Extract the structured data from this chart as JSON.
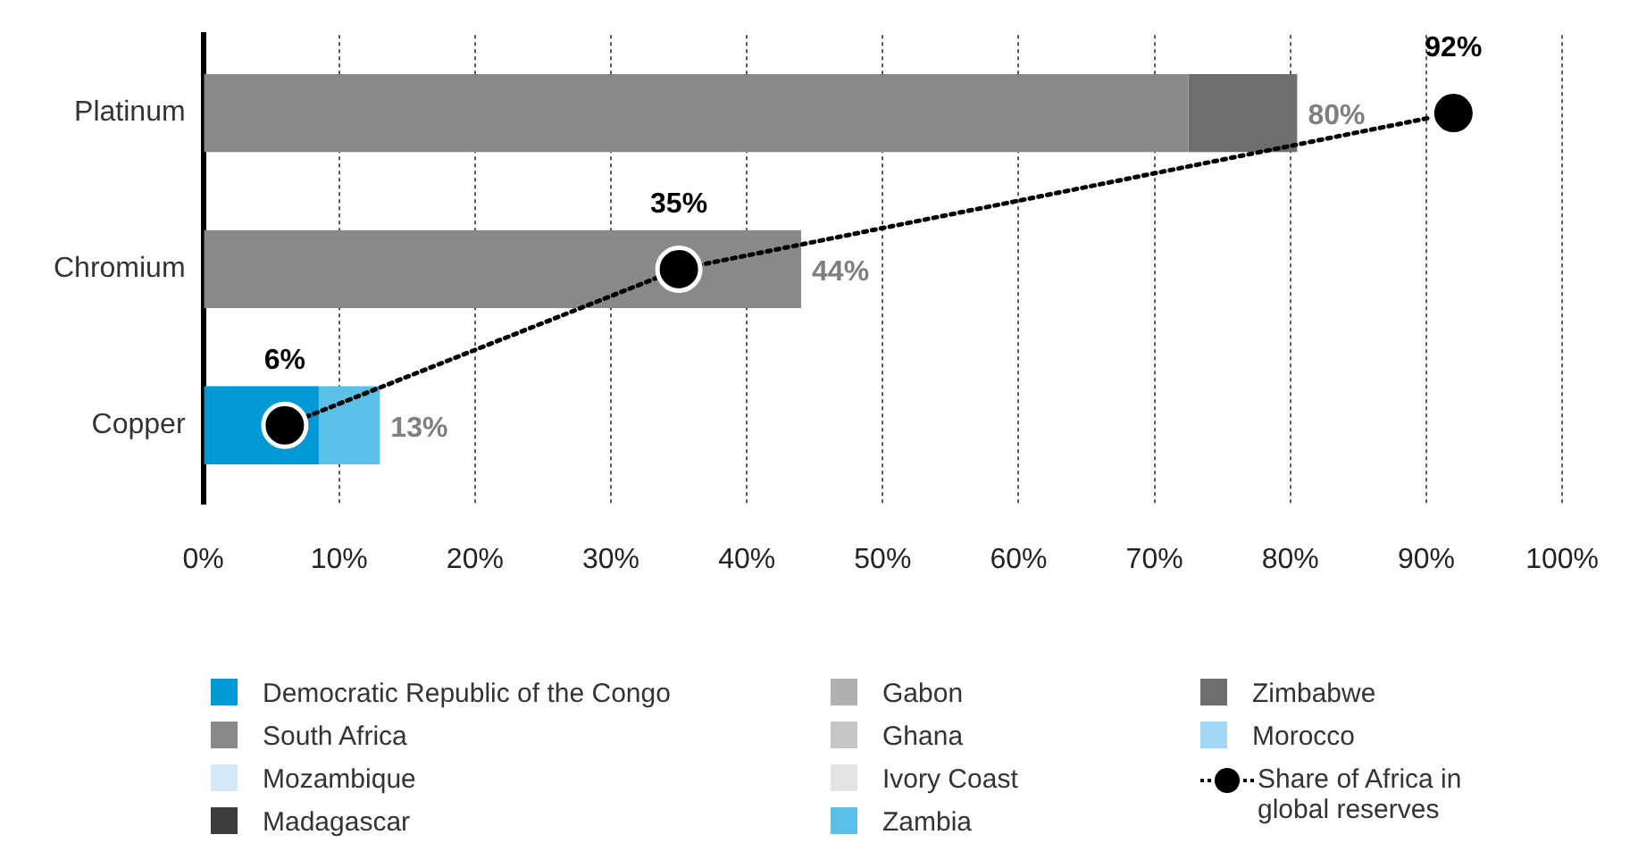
{
  "chart_data": {
    "type": "bar",
    "orientation": "horizontal",
    "stacked": true,
    "categories": [
      "Platinum",
      "Chromium",
      "Copper"
    ],
    "series": [
      {
        "name": "Democratic Republic of the Congo",
        "color": "#0099d6",
        "values": [
          0,
          0,
          8.5
        ]
      },
      {
        "name": "South Africa",
        "color": "#898989",
        "values": [
          72.5,
          44,
          0
        ]
      },
      {
        "name": "Mozambique",
        "color": "#d3e9f7",
        "values": [
          0,
          0,
          0
        ]
      },
      {
        "name": "Madagascar",
        "color": "#3c3c3c",
        "values": [
          0,
          0,
          0
        ]
      },
      {
        "name": "Gabon",
        "color": "#b0b0b0",
        "values": [
          0,
          0,
          0
        ]
      },
      {
        "name": "Ghana",
        "color": "#c6c6c6",
        "values": [
          0,
          0,
          0
        ]
      },
      {
        "name": "Ivory Coast",
        "color": "#e3e3e3",
        "values": [
          0,
          0,
          0
        ]
      },
      {
        "name": "Zambia",
        "color": "#5ac0e8",
        "values": [
          0,
          0,
          4.5
        ]
      },
      {
        "name": "Zimbabwe",
        "color": "#6e6e6e",
        "values": [
          8,
          0,
          0
        ]
      },
      {
        "name": "Morocco",
        "color": "#a3d8f4",
        "values": [
          0,
          0,
          0
        ]
      },
      {
        "name": "Share of Africa in global reserves",
        "type": "line",
        "color": "#000000",
        "marker": "circle",
        "line_style": "dotted",
        "values": [
          92,
          35,
          6
        ],
        "value_labels": [
          "92%",
          "35%",
          "6%"
        ]
      }
    ],
    "totals": [
      "80%",
      "44%",
      "13%"
    ],
    "xlim": [
      0,
      100
    ],
    "xticks": [
      {
        "value": 0,
        "label": "0%"
      },
      {
        "value": 10,
        "label": "10%"
      },
      {
        "value": 20,
        "label": "20%"
      },
      {
        "value": 30,
        "label": "30%"
      },
      {
        "value": 40,
        "label": "40%"
      },
      {
        "value": 50,
        "label": "50%"
      },
      {
        "value": 60,
        "label": "60%"
      },
      {
        "value": 70,
        "label": "70%"
      },
      {
        "value": 80,
        "label": "80%"
      },
      {
        "value": 90,
        "label": "90%"
      },
      {
        "value": 100,
        "label": "100%"
      }
    ],
    "grid": "x",
    "legend": "bottom"
  }
}
